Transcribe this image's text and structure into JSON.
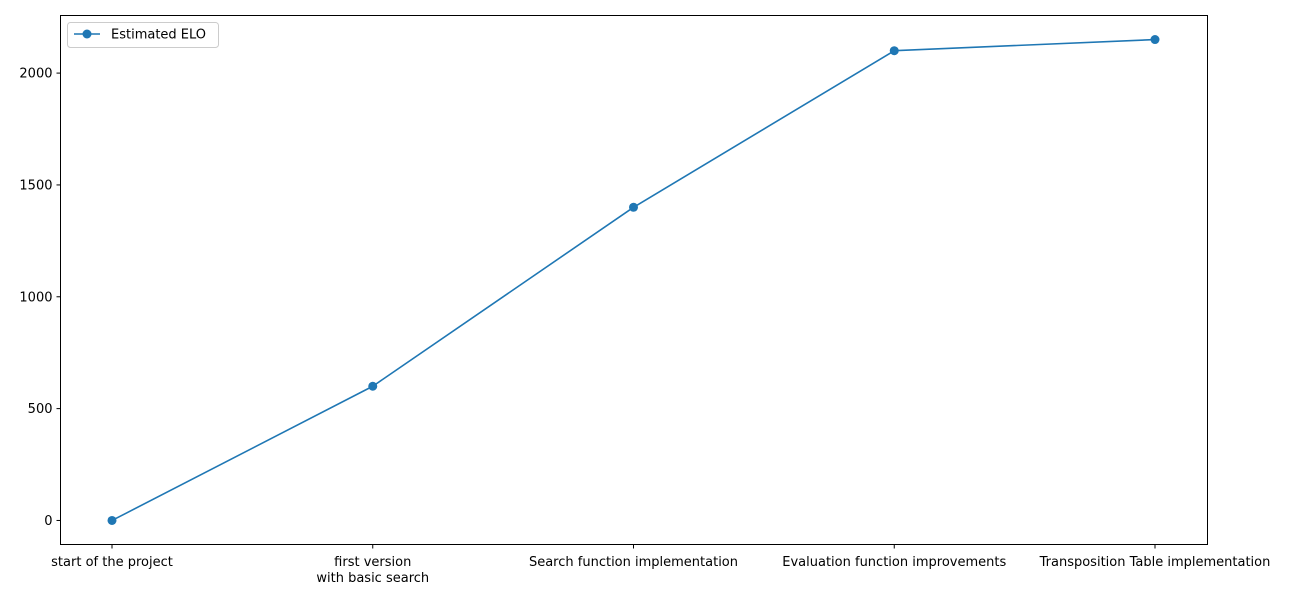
{
  "chart_data": {
    "type": "line",
    "categories": [
      "start of the project",
      "first version\nwith basic search",
      "Search function implementation",
      "Evaluation function improvements",
      "Transposition Table implementation"
    ],
    "series": [
      {
        "name": "Estimated ELO",
        "values": [
          0,
          600,
          1400,
          2100,
          2150
        ],
        "color": "#1f77b4",
        "marker": "circle"
      }
    ],
    "yticks": [
      0,
      500,
      1000,
      1500,
      2000
    ],
    "ylim": [
      -107.5,
      2257.5
    ],
    "grid": false,
    "legend": "top-left"
  }
}
